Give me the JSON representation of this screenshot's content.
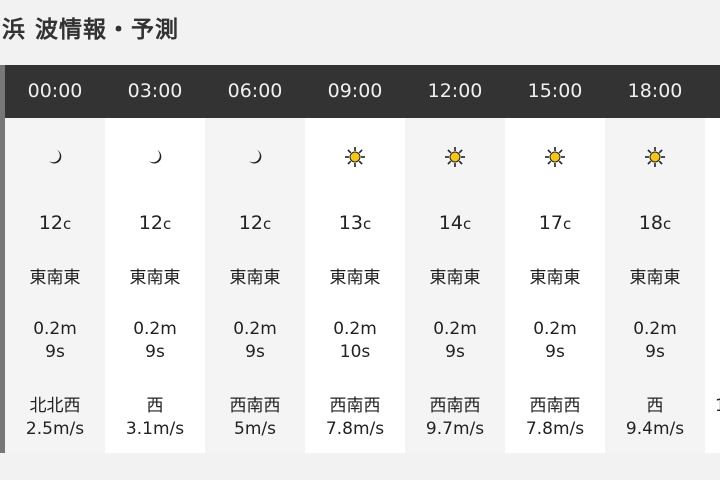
{
  "page": {
    "title": "浜 波情報・予測"
  },
  "colors": {
    "header_bg": "#333333",
    "sun": "#f5c518",
    "moon": "#222222"
  },
  "forecast": [
    {
      "time": "00:00",
      "icon": "moon-icon",
      "temp": "12",
      "temp_unit": "c",
      "wind_dir_wave": "東南東",
      "wave_height": "0.2m",
      "wave_period": "9s",
      "wind_dir": "北北西",
      "wind_speed": "2.5m/s"
    },
    {
      "time": "03:00",
      "icon": "moon-icon",
      "temp": "12",
      "temp_unit": "c",
      "wind_dir_wave": "東南東",
      "wave_height": "0.2m",
      "wave_period": "9s",
      "wind_dir": "西",
      "wind_speed": "3.1m/s"
    },
    {
      "time": "06:00",
      "icon": "moon-icon",
      "temp": "12",
      "temp_unit": "c",
      "wind_dir_wave": "東南東",
      "wave_height": "0.2m",
      "wave_period": "9s",
      "wind_dir": "西南西",
      "wind_speed": "5m/s"
    },
    {
      "time": "09:00",
      "icon": "sun-icon",
      "temp": "13",
      "temp_unit": "c",
      "wind_dir_wave": "東南東",
      "wave_height": "0.2m",
      "wave_period": "10s",
      "wind_dir": "西南西",
      "wind_speed": "7.8m/s"
    },
    {
      "time": "12:00",
      "icon": "sun-icon",
      "temp": "14",
      "temp_unit": "c",
      "wind_dir_wave": "東南東",
      "wave_height": "0.2m",
      "wave_period": "9s",
      "wind_dir": "西南西",
      "wind_speed": "9.7m/s"
    },
    {
      "time": "15:00",
      "icon": "sun-icon",
      "temp": "17",
      "temp_unit": "c",
      "wind_dir_wave": "東南東",
      "wave_height": "0.2m",
      "wave_period": "9s",
      "wind_dir": "西南西",
      "wind_speed": "7.8m/s"
    },
    {
      "time": "18:00",
      "icon": "sun-icon",
      "temp": "18",
      "temp_unit": "c",
      "wind_dir_wave": "東南東",
      "wave_height": "0.2m",
      "wave_period": "9s",
      "wind_dir": "西",
      "wind_speed": "9.4m/s"
    },
    {
      "time": "",
      "icon": "",
      "temp": "",
      "temp_unit": "",
      "wind_dir_wave": "",
      "wave_height": "",
      "wave_period": "",
      "wind_dir": "",
      "wind_speed": "1"
    }
  ]
}
